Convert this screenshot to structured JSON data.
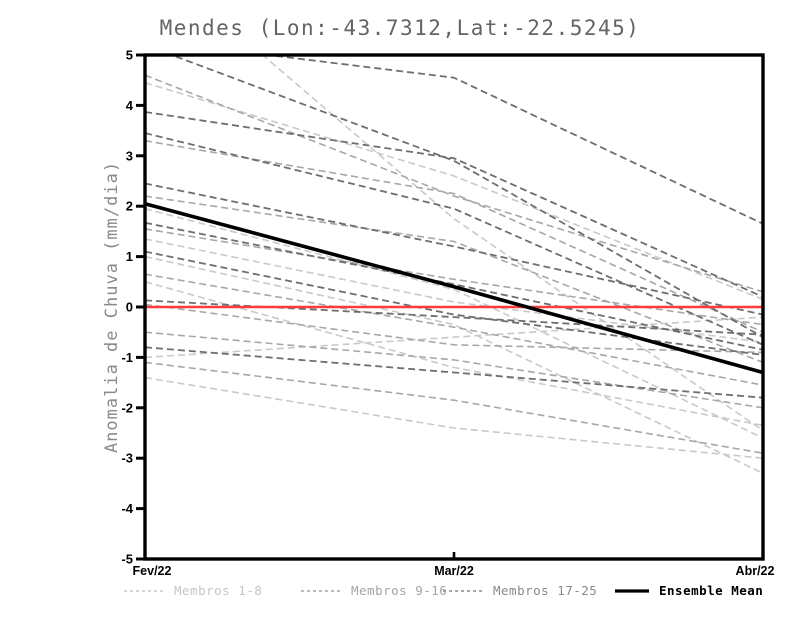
{
  "chart_data": {
    "type": "line",
    "title": "Mendes (Lon:-43.7312,Lat:-22.5245)",
    "xlabel": "",
    "ylabel": "Anomalia de Chuva (mm/dia)",
    "x_categories": [
      "Fev/22",
      "Mar/22",
      "Abr/22"
    ],
    "ylim": [
      -5,
      5
    ],
    "yticks": [
      "5",
      "4",
      "3",
      "2",
      "1",
      "0",
      "-1",
      "-2",
      "-3",
      "-4",
      "-5"
    ],
    "grid": false,
    "legend_position": "bottom",
    "zero_line": {
      "value": 0,
      "color": "#fa3c3c"
    },
    "groups": [
      {
        "name": "Membros 1-8",
        "color": "#c9c9c9",
        "series": [
          [
            7.0,
            1.75,
            -2.45
          ],
          [
            4.45,
            2.6,
            0.15
          ],
          [
            1.95,
            0.35,
            -2.6
          ],
          [
            1.35,
            0.1,
            -0.7
          ],
          [
            1.0,
            -0.35,
            -3.3
          ],
          [
            0.5,
            -1.2,
            -2.35
          ],
          [
            -1.0,
            -0.6,
            -0.2
          ],
          [
            -1.4,
            -2.4,
            -3.0
          ]
        ]
      },
      {
        "name": "Membros 9-16",
        "color": "#a7a7a7",
        "series": [
          [
            4.6,
            2.2,
            0.3
          ],
          [
            3.3,
            2.25,
            -0.5
          ],
          [
            2.2,
            1.3,
            -1.1
          ],
          [
            1.55,
            0.55,
            -0.35
          ],
          [
            0.65,
            -0.4,
            -1.55
          ],
          [
            0.05,
            -0.75,
            -0.9
          ],
          [
            -0.5,
            -1.05,
            -2.0
          ],
          [
            -1.1,
            -1.85,
            -2.9
          ]
        ]
      },
      {
        "name": "Membros 17-25",
        "color": "#6e6e6e",
        "series": [
          [
            5.3,
            4.55,
            1.65
          ],
          [
            5.2,
            2.9,
            -0.6
          ],
          [
            3.87,
            2.95,
            0.2
          ],
          [
            3.45,
            1.95,
            -0.75
          ],
          [
            2.45,
            1.2,
            -0.15
          ],
          [
            1.67,
            0.45,
            -0.85
          ],
          [
            1.1,
            -0.15,
            -0.95
          ],
          [
            0.13,
            -0.2,
            -0.55
          ],
          [
            -0.8,
            -1.3,
            -1.8
          ]
        ]
      }
    ],
    "ensemble_mean": {
      "name": "Ensemble Mean",
      "color": "#000000",
      "values": [
        2.05,
        0.4,
        -1.3
      ]
    }
  }
}
